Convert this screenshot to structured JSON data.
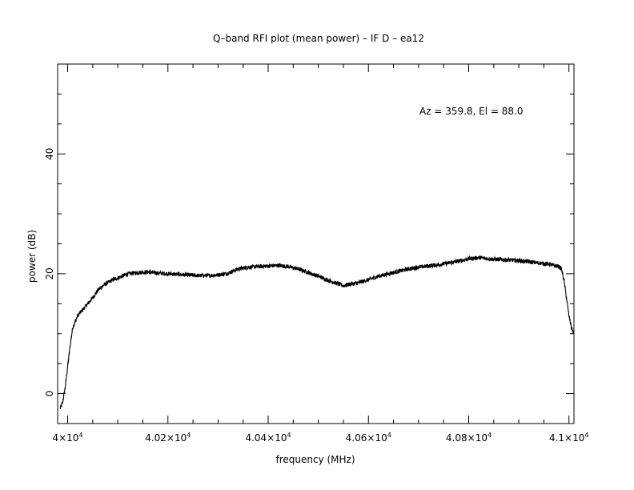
{
  "chart_data": {
    "type": "line",
    "title": "Q–band RFI plot (mean power) – IF D – ea12",
    "xlabel": "frequency (MHz)",
    "ylabel": "power (dB)",
    "annotation": "Az = 359.8, El = 88.0",
    "xlim": [
      39980,
      41010
    ],
    "ylim": [
      -5,
      55
    ],
    "x_ticks": [
      {
        "value": 40000,
        "mantissa": "4",
        "exponent": "4"
      },
      {
        "value": 40200,
        "mantissa": "4.02",
        "exponent": "4"
      },
      {
        "value": 40400,
        "mantissa": "4.04",
        "exponent": "4"
      },
      {
        "value": 40600,
        "mantissa": "4.06",
        "exponent": "4"
      },
      {
        "value": 40800,
        "mantissa": "4.08",
        "exponent": "4"
      },
      {
        "value": 41000,
        "mantissa": "4.1",
        "exponent": "4"
      }
    ],
    "y_ticks": [
      0,
      20,
      40
    ],
    "series": [
      {
        "color": "#000000",
        "x": [
          39985,
          39990,
          39995,
          40000,
          40005,
          40010,
          40020,
          40030,
          40040,
          40050,
          40060,
          40070,
          40080,
          40090,
          40100,
          40120,
          40140,
          40160,
          40180,
          40200,
          40220,
          40240,
          40260,
          40280,
          40300,
          40320,
          40340,
          40360,
          40380,
          40400,
          40420,
          40440,
          40460,
          40480,
          40500,
          40520,
          40540,
          40550,
          40560,
          40580,
          40600,
          40620,
          40640,
          40660,
          40680,
          40700,
          40720,
          40740,
          40760,
          40780,
          40800,
          40820,
          40840,
          40860,
          40880,
          40900,
          40920,
          40940,
          40960,
          40970,
          40980,
          40985,
          40990,
          40995,
          41000,
          41005,
          41010
        ],
        "y": [
          -2.5,
          -1.5,
          1.0,
          4.5,
          8.0,
          11.0,
          13.0,
          14.0,
          15.0,
          16.0,
          17.2,
          18.0,
          18.5,
          19.0,
          19.3,
          20.0,
          20.2,
          20.3,
          20.1,
          20.0,
          19.9,
          19.8,
          19.7,
          19.7,
          19.8,
          20.1,
          20.8,
          21.1,
          21.2,
          21.3,
          21.4,
          21.2,
          20.8,
          20.2,
          19.6,
          18.9,
          18.3,
          18.0,
          18.2,
          18.5,
          19.0,
          19.6,
          20.0,
          20.4,
          20.8,
          21.1,
          21.3,
          21.5,
          21.8,
          22.1,
          22.5,
          22.7,
          22.5,
          22.4,
          22.3,
          22.2,
          22.0,
          21.8,
          21.6,
          21.4,
          21.2,
          20.8,
          19.0,
          16.0,
          13.0,
          11.0,
          10.0
        ]
      }
    ],
    "grid": false
  }
}
